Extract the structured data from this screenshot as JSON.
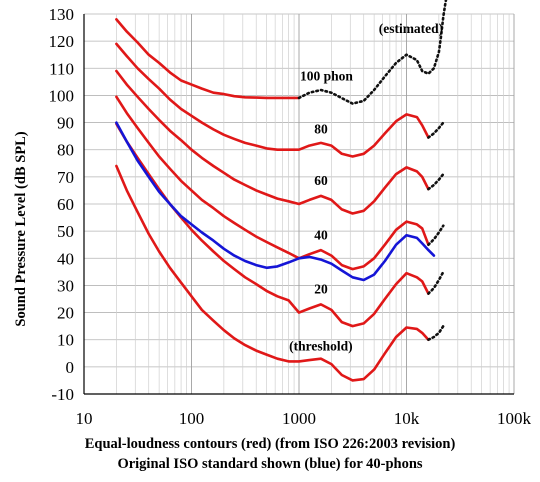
{
  "chart_data": {
    "type": "line",
    "title": "",
    "xlabel": "",
    "ylabel": "Sound Pressure Level (dB SPL)",
    "caption": [
      "Equal-loudness contours (red) (from ISO 226:2003 revision)",
      "Original ISO standard shown (blue) for 40-phons"
    ],
    "x_scale": "log",
    "xlim": [
      10,
      100000
    ],
    "ylim": [
      -10,
      130
    ],
    "x_ticks": [
      10,
      100,
      1000,
      10000,
      100000
    ],
    "x_tick_labels": [
      "10",
      "100",
      "1000",
      "10k",
      "100k"
    ],
    "y_ticks": [
      -10,
      0,
      10,
      20,
      30,
      40,
      50,
      60,
      70,
      80,
      90,
      100,
      110,
      120,
      130
    ],
    "y_tick_labels": [
      "-10",
      "0",
      "10",
      "20",
      "30",
      "40",
      "50",
      "60",
      "70",
      "80",
      "90",
      "100",
      "110",
      "120",
      "130"
    ],
    "grid": true,
    "annotations": [
      {
        "text": "(estimated)",
        "x": 11000,
        "y": 123
      },
      {
        "text": "100 phon",
        "x": 1800,
        "y": 105.5
      },
      {
        "text": "80",
        "x": 1600,
        "y": 86
      },
      {
        "text": "60",
        "x": 1600,
        "y": 67
      },
      {
        "text": "40",
        "x": 1600,
        "y": 47
      },
      {
        "text": "20",
        "x": 1600,
        "y": 27
      },
      {
        "text": "(threshold)",
        "x": 1600,
        "y": 6
      }
    ],
    "series": [
      {
        "color": "#e01818",
        "style": "solid",
        "x": [
          20,
          25,
          31.5,
          40,
          50,
          63,
          80,
          100,
          125,
          160,
          200,
          250,
          315,
          400,
          500,
          630,
          800,
          1000
        ],
        "y": [
          128,
          123.5,
          119.5,
          115,
          112,
          108.5,
          105.5,
          104,
          102.5,
          101,
          100.5,
          99.7,
          99.3,
          99.2,
          99.1,
          99.1,
          99.1,
          99.1
        ]
      },
      {
        "color": "#111111",
        "style": "dotted",
        "x": [
          1000,
          1250,
          1600,
          2000,
          2500,
          3150,
          4000,
          5000,
          6300,
          8000,
          10000,
          12500,
          14000,
          16000,
          18000,
          20000,
          21000,
          22000,
          23000,
          24000
        ],
        "y": [
          99.1,
          101,
          102,
          101,
          99,
          97,
          98,
          102,
          107,
          112,
          115,
          113,
          109,
          108,
          110,
          116,
          122,
          129,
          134,
          138
        ]
      },
      {
        "color": "#e01818",
        "style": "solid",
        "x": [
          20,
          25,
          31.5,
          40,
          50,
          63,
          80,
          100,
          125,
          160,
          200,
          250,
          315,
          400,
          500,
          630,
          800,
          1000,
          1250,
          1600,
          2000,
          2500,
          3150,
          4000,
          5000,
          6300,
          8000,
          10000,
          12500,
          14000,
          16000
        ],
        "y": [
          119,
          114.5,
          110,
          106,
          102.5,
          98.5,
          95,
          92.5,
          90,
          87.5,
          85.5,
          84,
          82.5,
          81.5,
          80.5,
          80,
          80,
          80,
          81.5,
          82.5,
          81.5,
          78.5,
          77.5,
          78.5,
          81.5,
          86,
          90.5,
          93,
          92,
          89,
          84.5
        ]
      },
      {
        "color": "#111111",
        "style": "dotted",
        "x": [
          16000,
          18000,
          20000,
          22000
        ],
        "y": [
          84.5,
          86,
          88,
          90
        ]
      },
      {
        "color": "#e01818",
        "style": "solid",
        "x": [
          20,
          25,
          31.5,
          40,
          50,
          63,
          80,
          100,
          125,
          160,
          200,
          250,
          315,
          400,
          500,
          630,
          800,
          1000,
          1250,
          1600,
          2000,
          2500,
          3150,
          4000,
          5000,
          6300,
          8000,
          10000,
          12500,
          14000,
          16000
        ],
        "y": [
          109,
          104,
          99.5,
          95,
          91,
          87,
          83.5,
          80,
          77,
          74,
          71.5,
          69,
          67,
          65,
          63.5,
          62,
          61,
          60,
          61.5,
          63,
          61.5,
          58,
          56.5,
          57.5,
          61,
          66,
          71,
          73.5,
          72,
          70,
          65.5
        ]
      },
      {
        "color": "#111111",
        "style": "dotted",
        "x": [
          16000,
          18000,
          20000,
          22000
        ],
        "y": [
          65.5,
          67,
          69,
          71
        ]
      },
      {
        "color": "#e01818",
        "style": "solid",
        "x": [
          20,
          25,
          31.5,
          40,
          50,
          63,
          80,
          100,
          125,
          160,
          200,
          250,
          315,
          400,
          500,
          630,
          800,
          1000,
          1250,
          1600,
          2000,
          2500,
          3150,
          4000,
          5000,
          6300,
          8000,
          10000,
          12500,
          14000,
          16000
        ],
        "y": [
          99.5,
          93.5,
          88,
          82.5,
          77.5,
          73,
          68.5,
          65,
          61.5,
          58.5,
          55.5,
          53,
          50.5,
          48,
          46,
          44,
          42,
          40,
          41.5,
          43,
          41,
          37.5,
          36,
          37,
          40,
          45,
          50.5,
          53.5,
          52.5,
          51,
          45
        ]
      },
      {
        "color": "#111111",
        "style": "dotted",
        "x": [
          16000,
          18000,
          20000,
          22000
        ],
        "y": [
          45,
          47,
          49.5,
          52
        ]
      },
      {
        "color": "#e01818",
        "style": "solid",
        "x": [
          20,
          25,
          31.5,
          40,
          50,
          63,
          80,
          100,
          125,
          160,
          200,
          250,
          315,
          400,
          500,
          630,
          800,
          1000,
          1250,
          1600,
          2000,
          2500,
          3150,
          4000,
          5000,
          6300,
          8000,
          10000,
          12500,
          14000,
          16000
        ],
        "y": [
          89.5,
          83,
          77,
          71,
          65.5,
          60,
          55,
          50.5,
          46.5,
          42.5,
          39,
          36,
          33,
          30.5,
          28,
          26,
          24.5,
          20,
          21.5,
          23,
          21,
          16.5,
          15,
          16,
          19.5,
          25,
          30.5,
          34.5,
          33,
          31.5,
          27
        ]
      },
      {
        "color": "#111111",
        "style": "dotted",
        "x": [
          16000,
          18000,
          20000,
          22000
        ],
        "y": [
          27,
          29,
          32,
          35
        ]
      },
      {
        "color": "#e01818",
        "style": "solid",
        "x": [
          20,
          25,
          31.5,
          40,
          50,
          63,
          80,
          100,
          125,
          160,
          200,
          250,
          315,
          400,
          500,
          630,
          800,
          1000,
          1250,
          1600,
          2000,
          2500,
          3150,
          4000,
          5000,
          6300,
          8000,
          10000,
          12500,
          14000,
          16000
        ],
        "y": [
          74,
          65,
          57,
          49,
          42.5,
          36.5,
          31,
          26,
          21,
          17,
          13.5,
          10.5,
          8,
          6,
          4.5,
          3,
          2,
          2,
          2.5,
          3,
          1,
          -3,
          -5,
          -4.5,
          -1,
          5,
          11,
          14.5,
          14,
          12.5,
          10
        ]
      },
      {
        "color": "#111111",
        "style": "dotted",
        "x": [
          16000,
          18000,
          20000,
          22000
        ],
        "y": [
          10,
          11,
          12.5,
          15
        ]
      },
      {
        "color": "#1515d6",
        "style": "solid",
        "x": [
          20,
          25,
          31.5,
          40,
          50,
          63,
          80,
          100,
          125,
          160,
          200,
          250,
          315,
          400,
          500,
          630,
          800,
          1000,
          1250,
          1600,
          2000,
          2500,
          3150,
          4000,
          5000,
          6300,
          8000,
          10000,
          12500,
          14000,
          16000,
          18000
        ],
        "y": [
          90,
          83,
          76,
          70,
          64.5,
          60,
          55.5,
          52.5,
          49.5,
          46.5,
          43.5,
          41,
          39,
          37.5,
          36.5,
          37,
          38.5,
          40,
          40.5,
          39.5,
          38,
          35.5,
          33,
          32,
          34,
          39,
          45,
          48.5,
          47.5,
          45.5,
          43,
          41
        ]
      }
    ]
  }
}
